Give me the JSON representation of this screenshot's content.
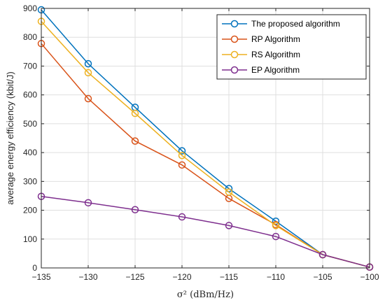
{
  "chart_data": {
    "type": "line",
    "xlabel": "σ² (dBm/Hz)",
    "ylabel": "average energy efficiency (kbit/J)",
    "x": [
      -135,
      -130,
      -125,
      -120,
      -115,
      -110,
      -105,
      -100
    ],
    "xlim": [
      -135,
      -100
    ],
    "ylim": [
      0,
      900
    ],
    "xticks": [
      -135,
      -130,
      -125,
      -120,
      -115,
      -110,
      -105,
      -100
    ],
    "yticks": [
      0,
      100,
      200,
      300,
      400,
      500,
      600,
      700,
      800,
      900
    ],
    "xtick_labels": [
      "−135",
      "−130",
      "−125",
      "−120",
      "−115",
      "−110",
      "−105",
      "−100"
    ],
    "ytick_labels": [
      "0",
      "100",
      "200",
      "300",
      "400",
      "500",
      "600",
      "700",
      "800",
      "900"
    ],
    "grid": true,
    "legend_position": "top-right",
    "series": [
      {
        "name": "The proposed algorithm",
        "color": "#0072BD",
        "values": [
          895,
          708,
          557,
          406,
          275,
          162,
          46,
          3
        ]
      },
      {
        "name": "RP Algorithm",
        "color": "#D95319",
        "values": [
          778,
          587,
          440,
          357,
          241,
          150,
          46,
          3
        ]
      },
      {
        "name": "RS Algorithm",
        "color": "#EDB120",
        "values": [
          855,
          677,
          536,
          390,
          263,
          147,
          46,
          3
        ]
      },
      {
        "name": "EP Algorithm",
        "color": "#7E2F8E",
        "values": [
          248,
          226,
          202,
          177,
          147,
          109,
          46,
          3
        ]
      }
    ]
  }
}
